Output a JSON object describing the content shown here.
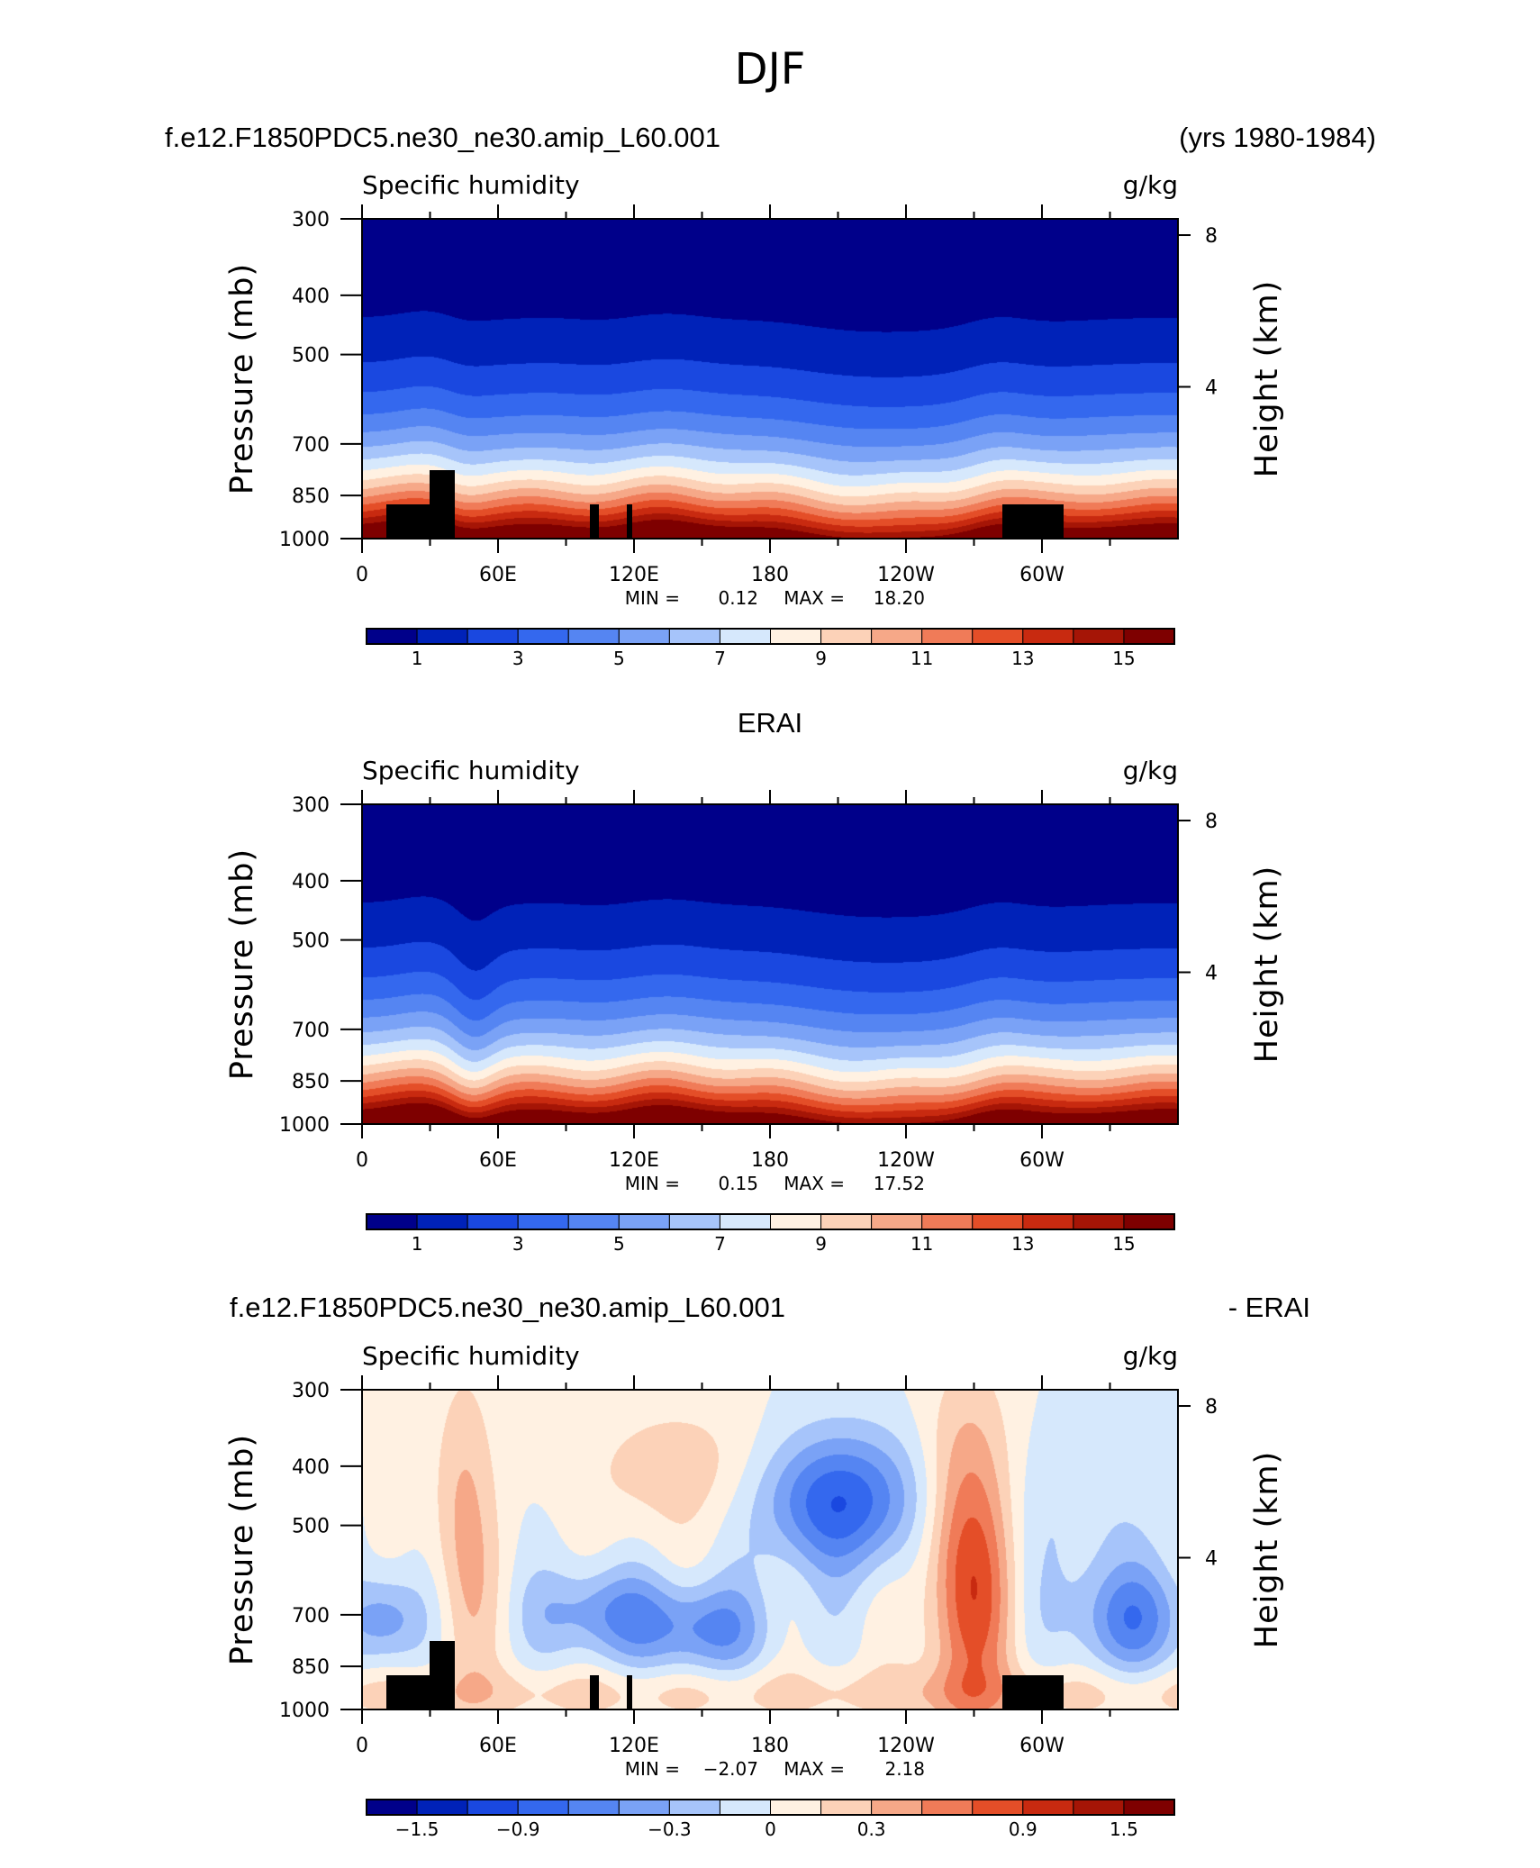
{
  "figure": {
    "title": "DJF",
    "case_name": "f.e12.F1850PDC5.ne30_ne30.amip_L60.001",
    "years": "(yrs 1980-1984)",
    "panel2_title": "ERAI",
    "diff_title_left": "f.e12.F1850PDC5.ne30_ne30.amip_L60.001",
    "diff_title_right": "- ERAI"
  },
  "colors": {
    "full_palette": [
      "#00008a",
      "#0022b8",
      "#1a48e0",
      "#3468ee",
      "#5585f2",
      "#7aa2f6",
      "#a6c4fa",
      "#d6e8fc",
      "#fff1e2",
      "#fcd2b8",
      "#f6a888",
      "#f07b58",
      "#e44e28",
      "#c82a10",
      "#a51506",
      "#7e0000"
    ],
    "diff_palette": [
      "#00008a",
      "#0022b8",
      "#1a48e0",
      "#3468ee",
      "#5585f2",
      "#7aa2f6",
      "#a6c4fa",
      "#d6e8fc",
      "#fff1e2",
      "#fcd2b8",
      "#f6a888",
      "#f07b58",
      "#e44e28",
      "#c82a10",
      "#a51506",
      "#7e0000"
    ],
    "topography": "#000000"
  },
  "chart_data": [
    {
      "type": "heatmap",
      "panel": "model",
      "left_label": "Specific humidity",
      "right_label": "g/kg",
      "ylabel": "Pressure (mb)",
      "ylabel_right": "Height (km)",
      "x_tick_labels": [
        "0",
        "60E",
        "120E",
        "180",
        "120W",
        "60W"
      ],
      "x_ticks_lon": [
        0,
        60,
        120,
        180,
        240,
        300
      ],
      "y_tick_labels": [
        "300",
        "400",
        "500",
        "700",
        "850",
        "1000"
      ],
      "y_ticks_p": [
        300,
        400,
        500,
        700,
        850,
        1000
      ],
      "y_right_tick_labels": [
        "8",
        "4"
      ],
      "y_right_ticks_km": [
        8,
        4
      ],
      "ylim": [
        1000,
        300
      ],
      "xlim": [
        0,
        360
      ],
      "stats": {
        "min_label": "MIN =",
        "min": "0.12",
        "max_label": "MAX =",
        "max": "18.20"
      },
      "colorbar_labels": [
        "1",
        "3",
        "5",
        "7",
        "9",
        "11",
        "13",
        "15"
      ],
      "levels": [
        1,
        2,
        3,
        4,
        5,
        6,
        7,
        8,
        9,
        10,
        11,
        12,
        13,
        14,
        15
      ],
      "field": "model"
    },
    {
      "type": "heatmap",
      "panel": "obs",
      "left_label": "Specific humidity",
      "right_label": "g/kg",
      "ylabel": "Pressure (mb)",
      "ylabel_right": "Height (km)",
      "x_tick_labels": [
        "0",
        "60E",
        "120E",
        "180",
        "120W",
        "60W"
      ],
      "x_ticks_lon": [
        0,
        60,
        120,
        180,
        240,
        300
      ],
      "y_tick_labels": [
        "300",
        "400",
        "500",
        "700",
        "850",
        "1000"
      ],
      "y_ticks_p": [
        300,
        400,
        500,
        700,
        850,
        1000
      ],
      "y_right_tick_labels": [
        "8",
        "4"
      ],
      "y_right_ticks_km": [
        8,
        4
      ],
      "ylim": [
        1000,
        300
      ],
      "xlim": [
        0,
        360
      ],
      "stats": {
        "min_label": "MIN =",
        "min": "0.15",
        "max_label": "MAX =",
        "max": "17.52"
      },
      "colorbar_labels": [
        "1",
        "3",
        "5",
        "7",
        "9",
        "11",
        "13",
        "15"
      ],
      "levels": [
        1,
        2,
        3,
        4,
        5,
        6,
        7,
        8,
        9,
        10,
        11,
        12,
        13,
        14,
        15
      ],
      "field": "obs"
    },
    {
      "type": "heatmap",
      "panel": "diff",
      "left_label": "Specific humidity",
      "right_label": "g/kg",
      "ylabel": "Pressure (mb)",
      "ylabel_right": "Height (km)",
      "x_tick_labels": [
        "0",
        "60E",
        "120E",
        "180",
        "120W",
        "60W"
      ],
      "x_ticks_lon": [
        0,
        60,
        120,
        180,
        240,
        300
      ],
      "y_tick_labels": [
        "300",
        "400",
        "500",
        "700",
        "850",
        "1000"
      ],
      "y_ticks_p": [
        300,
        400,
        500,
        700,
        850,
        1000
      ],
      "y_right_tick_labels": [
        "8",
        "4"
      ],
      "y_right_ticks_km": [
        8,
        4
      ],
      "ylim": [
        1000,
        300
      ],
      "xlim": [
        0,
        360
      ],
      "stats": {
        "min_label": "MIN =",
        "min": "−2.07",
        "max_label": "MAX =",
        "max": "2.18"
      },
      "colorbar_labels": [
        "−1.5",
        "−0.9",
        "−0.3",
        "0",
        "0.3",
        "0.9",
        "1.5"
      ],
      "levels": [
        -2.1,
        -1.8,
        -1.5,
        -1.2,
        -0.9,
        -0.6,
        -0.3,
        0,
        0.3,
        0.6,
        0.9,
        1.2,
        1.5,
        1.8,
        2.1
      ],
      "field": "diff"
    }
  ]
}
